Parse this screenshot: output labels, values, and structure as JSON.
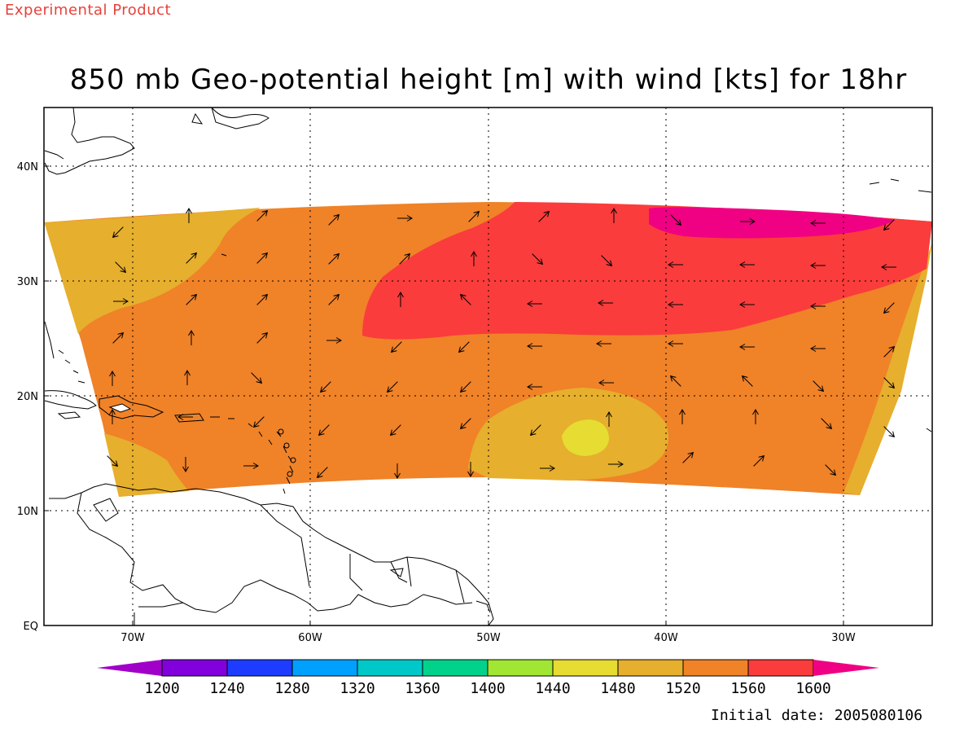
{
  "header": {
    "product_tag": "Experimental Product"
  },
  "map": {
    "title": "850 mb Geo-potential height [m] with wind [kts] for 18hr",
    "lat_labels": [
      {
        "value": 40,
        "label": "40N"
      },
      {
        "value": 30,
        "label": "30N"
      },
      {
        "value": 20,
        "label": "20N"
      },
      {
        "value": 10,
        "label": "10N"
      },
      {
        "value": 0,
        "label": "EQ"
      }
    ],
    "lon_labels": [
      {
        "value": -70,
        "label": "70W"
      },
      {
        "value": -60,
        "label": "60W"
      },
      {
        "value": -50,
        "label": "50W"
      },
      {
        "value": -40,
        "label": "40W"
      },
      {
        "value": -30,
        "label": "30W"
      }
    ],
    "lon_range": [
      -75,
      -25
    ],
    "lat_range": [
      0,
      45
    ],
    "grid": "dotted"
  },
  "colorbar": {
    "labels": [
      "1200",
      "1240",
      "1280",
      "1320",
      "1360",
      "1400",
      "1440",
      "1480",
      "1520",
      "1560",
      "1600"
    ],
    "colors": [
      "#a000c8",
      "#8200dc",
      "#1e3cff",
      "#00a0ff",
      "#00c8c8",
      "#00d28c",
      "#a0e632",
      "#e6dc32",
      "#e6af2d",
      "#f08228",
      "#fa3c3c",
      "#f00082"
    ]
  },
  "footer": {
    "initial_date": "Initial date: 2005080106"
  },
  "fill_colors": {
    "c1480": "#e6dc32",
    "c1520": "#e6af2d",
    "c1560": "#f08228",
    "c1600": "#fa3c3c",
    "c1640": "#f00082"
  }
}
